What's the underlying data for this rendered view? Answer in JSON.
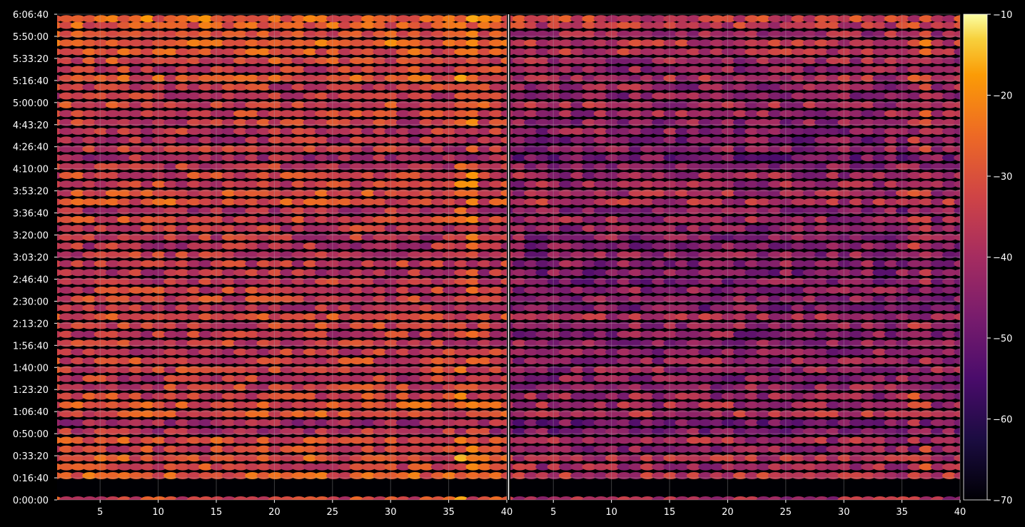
{
  "chart_data": {
    "type": "heatmap",
    "title": "",
    "xlabel": "",
    "ylabel": "",
    "panels": [
      {
        "xlim": [
          1.3,
          40
        ],
        "x_ticks": [
          5,
          10,
          15,
          20,
          25,
          30,
          35,
          40
        ],
        "rows_seconds": [
          0,
          1100,
          1500,
          1900,
          2300,
          2700,
          3100,
          3500,
          3900,
          4300,
          4700,
          5100,
          5500,
          5900,
          6300,
          6700,
          7100,
          7500,
          7900,
          8300,
          8700,
          9100,
          9500,
          9900,
          10300,
          10700,
          11100,
          11500,
          11900,
          12300,
          12700,
          13100,
          13500,
          13900,
          14300,
          14700,
          15100,
          15500,
          15900,
          16300,
          16700,
          17100,
          17500,
          17900,
          18300,
          18700,
          19100,
          19500,
          19900,
          20300,
          20700,
          21100,
          21500,
          21800
        ],
        "row_levels_db": [
          -32,
          -28,
          -32,
          -30,
          -34,
          -31,
          -38,
          -40,
          -30,
          -30,
          -33,
          -34,
          -36,
          -34,
          -33,
          -35,
          -35,
          -36,
          -34,
          -32,
          -38,
          -34,
          -35,
          -36,
          -38,
          -36,
          -36,
          -38,
          -36,
          -36,
          -33,
          -38,
          -30,
          -31,
          -34,
          -33,
          -36,
          -40,
          -36,
          -38,
          -36,
          -35,
          -34,
          -32,
          -36,
          -35,
          -30,
          -34,
          -32,
          -30,
          -27,
          -30,
          -28,
          -26
        ]
      },
      {
        "xlim": [
          1.3,
          40
        ],
        "x_ticks": [
          5,
          10,
          15,
          20,
          25,
          30,
          35,
          40
        ],
        "rows_seconds": [
          0,
          1100,
          1500,
          1900,
          2300,
          2700,
          3100,
          3500,
          3900,
          4300,
          4700,
          5100,
          5500,
          5900,
          6300,
          6700,
          7100,
          7500,
          7900,
          8300,
          8700,
          9100,
          9500,
          9900,
          10300,
          10700,
          11100,
          11500,
          11900,
          12300,
          12700,
          13100,
          13500,
          13900,
          14300,
          14700,
          15100,
          15500,
          15900,
          16300,
          16700,
          17100,
          17500,
          17900,
          18300,
          18700,
          19100,
          19500,
          19900,
          20300,
          20700,
          21100,
          21500,
          21800
        ],
        "row_levels_db": [
          -40,
          -36,
          -40,
          -38,
          -44,
          -40,
          -46,
          -48,
          -38,
          -40,
          -42,
          -42,
          -44,
          -42,
          -42,
          -44,
          -44,
          -44,
          -42,
          -40,
          -46,
          -44,
          -44,
          -46,
          -46,
          -44,
          -44,
          -46,
          -44,
          -44,
          -42,
          -46,
          -38,
          -40,
          -42,
          -42,
          -44,
          -48,
          -44,
          -46,
          -44,
          -44,
          -42,
          -40,
          -44,
          -42,
          -38,
          -42,
          -40,
          -38,
          -36,
          -40,
          -36,
          -34
        ]
      }
    ],
    "ylim_seconds": [
      0,
      22000
    ],
    "y_tick_labels": [
      "0:00:00",
      "0:16:40",
      "0:33:20",
      "0:50:00",
      "1:06:40",
      "1:23:20",
      "1:40:00",
      "1:56:40",
      "2:13:20",
      "2:30:00",
      "2:46:40",
      "3:03:20",
      "3:20:00",
      "3:36:40",
      "3:53:20",
      "4:10:00",
      "4:26:40",
      "4:43:20",
      "5:00:00",
      "5:16:40",
      "5:33:20",
      "5:50:00",
      "6:06:40"
    ],
    "y_tick_seconds": [
      0,
      1000,
      2000,
      3000,
      4000,
      5000,
      6000,
      7000,
      8000,
      9000,
      10000,
      11000,
      12000,
      13000,
      14000,
      15000,
      16000,
      17000,
      18000,
      19000,
      20000,
      21000,
      22000
    ],
    "colorbar": {
      "colormap": "inferno",
      "range": [
        -70,
        -10
      ],
      "ticks": [
        -10,
        -20,
        -30,
        -40,
        -50,
        -60,
        -70
      ],
      "tick_labels": [
        "−10",
        "−20",
        "−30",
        "−40",
        "−50",
        "−60",
        "−70"
      ]
    },
    "gaps_seconds": [
      [
        15200,
        16300
      ]
    ],
    "grid": true
  }
}
